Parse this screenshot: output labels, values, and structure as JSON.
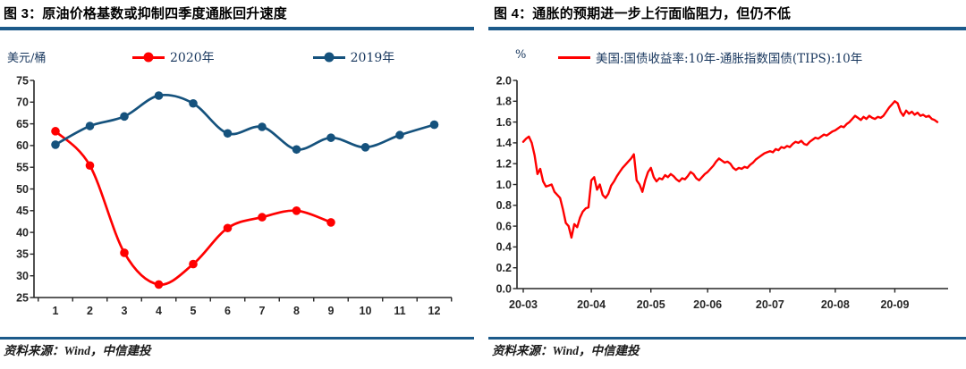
{
  "colors": {
    "red_line": "#ff0000",
    "blue_line": "#15527d",
    "rule_blue": "#1c5a8a",
    "axis_text": "#262626",
    "serif_text": "#17365d",
    "title_text": "#000000"
  },
  "figures": [
    {
      "title": "图 3：原油价格基数或抑制四季度通胀回升速度",
      "unit_label": "美元/桶",
      "source": "资料来源：Wind，中信建投",
      "chart_data": {
        "type": "line",
        "categories": [
          1,
          2,
          3,
          4,
          5,
          6,
          7,
          8,
          9,
          10,
          11,
          12
        ],
        "series": [
          {
            "name": "2020年",
            "color": "#ff0000",
            "values": [
              63.3,
              55.4,
              35.3,
              28.0,
              32.7,
              41.0,
              43.5,
              45.0,
              42.3
            ]
          },
          {
            "name": "2019年",
            "color": "#15527d",
            "values": [
              60.2,
              64.5,
              66.7,
              71.5,
              69.7,
              62.8,
              64.3,
              59.1,
              61.8,
              59.6,
              62.4,
              64.8
            ]
          }
        ],
        "ylabel": "美元/桶",
        "ylim": [
          25,
          75
        ],
        "ytick_step": 5,
        "markers": true,
        "smooth": true,
        "grid": false,
        "legend_position": "top"
      }
    },
    {
      "title": "图 4：通胀的预期进一步上行面临阻力，但仍不低",
      "unit_label": "%",
      "source": "资料来源：Wind，中信建投",
      "chart_data": {
        "type": "line",
        "x_tick_labels": [
          "20-03",
          "20-04",
          "20-05",
          "20-06",
          "20-07",
          "20-08",
          "20-09"
        ],
        "x_tick_indices": [
          0,
          24,
          45,
          65,
          87,
          110,
          131
        ],
        "series": [
          {
            "name": "美国:国债收益率:10年-通胀指数国债(TIPS):10年",
            "color": "#ff0000",
            "values": [
              1.41,
              1.44,
              1.46,
              1.4,
              1.28,
              1.1,
              1.15,
              1.03,
              0.98,
              0.99,
              1.0,
              0.93,
              0.9,
              0.87,
              0.76,
              0.63,
              0.6,
              0.49,
              0.62,
              0.59,
              0.68,
              0.74,
              0.77,
              0.78,
              1.04,
              1.07,
              0.95,
              1.0,
              0.9,
              0.87,
              0.91,
              0.99,
              1.03,
              1.08,
              1.12,
              1.16,
              1.19,
              1.22,
              1.25,
              1.29,
              1.04,
              1.0,
              0.93,
              1.04,
              1.12,
              1.16,
              1.07,
              1.03,
              1.06,
              1.05,
              1.09,
              1.07,
              1.1,
              1.08,
              1.05,
              1.03,
              1.06,
              1.05,
              1.08,
              1.12,
              1.1,
              1.06,
              1.04,
              1.07,
              1.1,
              1.12,
              1.15,
              1.18,
              1.22,
              1.25,
              1.23,
              1.21,
              1.22,
              1.2,
              1.16,
              1.14,
              1.16,
              1.15,
              1.17,
              1.16,
              1.19,
              1.21,
              1.24,
              1.26,
              1.28,
              1.3,
              1.31,
              1.32,
              1.31,
              1.34,
              1.33,
              1.36,
              1.35,
              1.37,
              1.36,
              1.39,
              1.41,
              1.4,
              1.42,
              1.39,
              1.38,
              1.41,
              1.43,
              1.45,
              1.44,
              1.46,
              1.48,
              1.47,
              1.49,
              1.51,
              1.52,
              1.54,
              1.56,
              1.55,
              1.58,
              1.6,
              1.63,
              1.66,
              1.64,
              1.62,
              1.65,
              1.63,
              1.66,
              1.64,
              1.63,
              1.65,
              1.64,
              1.66,
              1.7,
              1.74,
              1.77,
              1.8,
              1.78,
              1.7,
              1.66,
              1.71,
              1.68,
              1.7,
              1.67,
              1.69,
              1.66,
              1.67,
              1.65,
              1.66,
              1.63,
              1.62,
              1.6
            ]
          }
        ],
        "ylabel": "%",
        "ylim": [
          0.0,
          2.0
        ],
        "ytick_step": 0.2,
        "markers": false,
        "smooth": false,
        "grid": false,
        "legend_position": "top"
      }
    }
  ]
}
